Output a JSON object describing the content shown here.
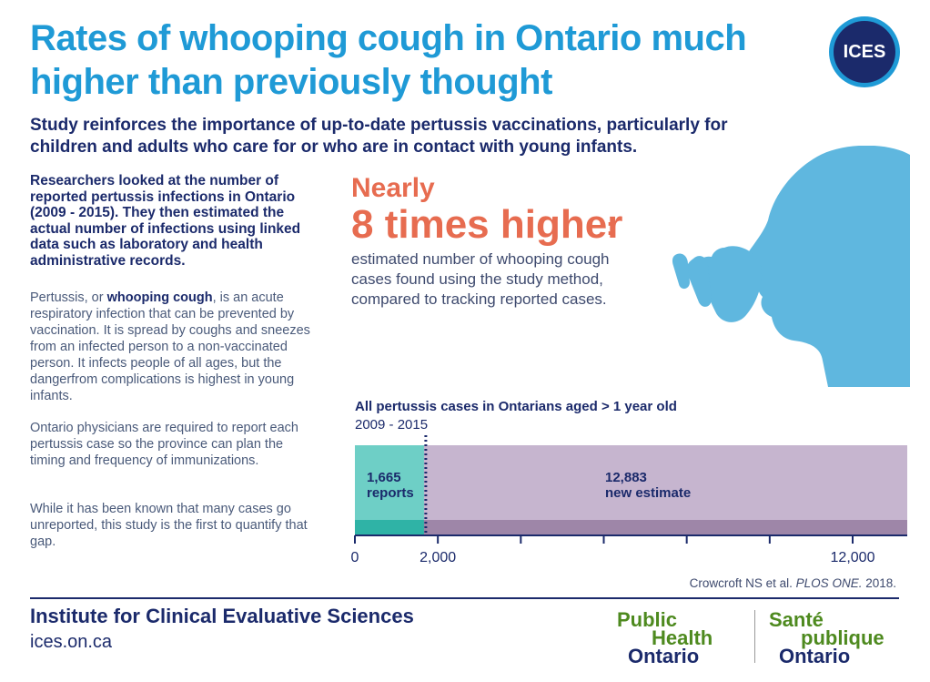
{
  "header": {
    "title": "Rates of whooping cough in Ontario much higher than previously thought",
    "subtitle": "Study reinforces the importance of up-to-date pertussis vaccinations, particularly for children and adults who care for or who are in contact with young infants.",
    "logo_text": "ICES"
  },
  "left": {
    "lead": "Researchers looked at the number of reported pertussis infections in Ontario (2009 - 2015). They then estimated the actual number of infections using linked data such as laboratory and health administrative records.",
    "p1_prefix": "Pertussis, or ",
    "p1_bold": "whooping cough",
    "p1_suffix": ", is an acute respiratory infection that can be prevented by vaccination. It is spread by coughs and sneezes from an infected person to a non-vaccinated person. It infects people of all ages, but the dangerfrom complications is highest in young infants.",
    "p2": "Ontario physicians are required to report each pertussis case so the province can plan the timing and frequency of immunizations.",
    "p3": "While it has been known that many cases go  unreported, this study is the first to quantify that gap."
  },
  "highlight": {
    "nearly": "Nearly",
    "headline": "8 times higher",
    "colon": ":",
    "description": "estimated number of whooping cough  cases found using the study method, compared to tracking reported cases."
  },
  "chart_data": {
    "type": "bar",
    "title": "All pertussis cases in Ontarians aged > 1 year old",
    "subtitle": "2009 - 2015",
    "orientation": "horizontal",
    "xlim": [
      0,
      13000
    ],
    "tick_values": [
      0,
      2000,
      4000,
      6000,
      8000,
      10000,
      12000
    ],
    "tick_labels": [
      "0",
      "2,000",
      "",
      "",
      "",
      "",
      "12,000"
    ],
    "series": [
      {
        "value": 1665,
        "value_label": "1,665",
        "label": "reports",
        "color": "#6ecfc6"
      },
      {
        "value": 12883,
        "value_label": "12,883",
        "label": "new estimate",
        "color": "#c6b5cf"
      }
    ]
  },
  "citation": {
    "authors": "Crowcroft NS et al. ",
    "journal": "PLOS ONE.",
    "year": "  2018."
  },
  "footer": {
    "org_name": "Institute for Clinical Evaluative Sciences",
    "url": "ices.on.ca",
    "pho_en_1": "Public",
    "pho_en_2": "Health",
    "pho_en_3": "Ontario",
    "pho_fr_1": "Santé",
    "pho_fr_2": "publique",
    "pho_fr_3": "Ontario"
  }
}
